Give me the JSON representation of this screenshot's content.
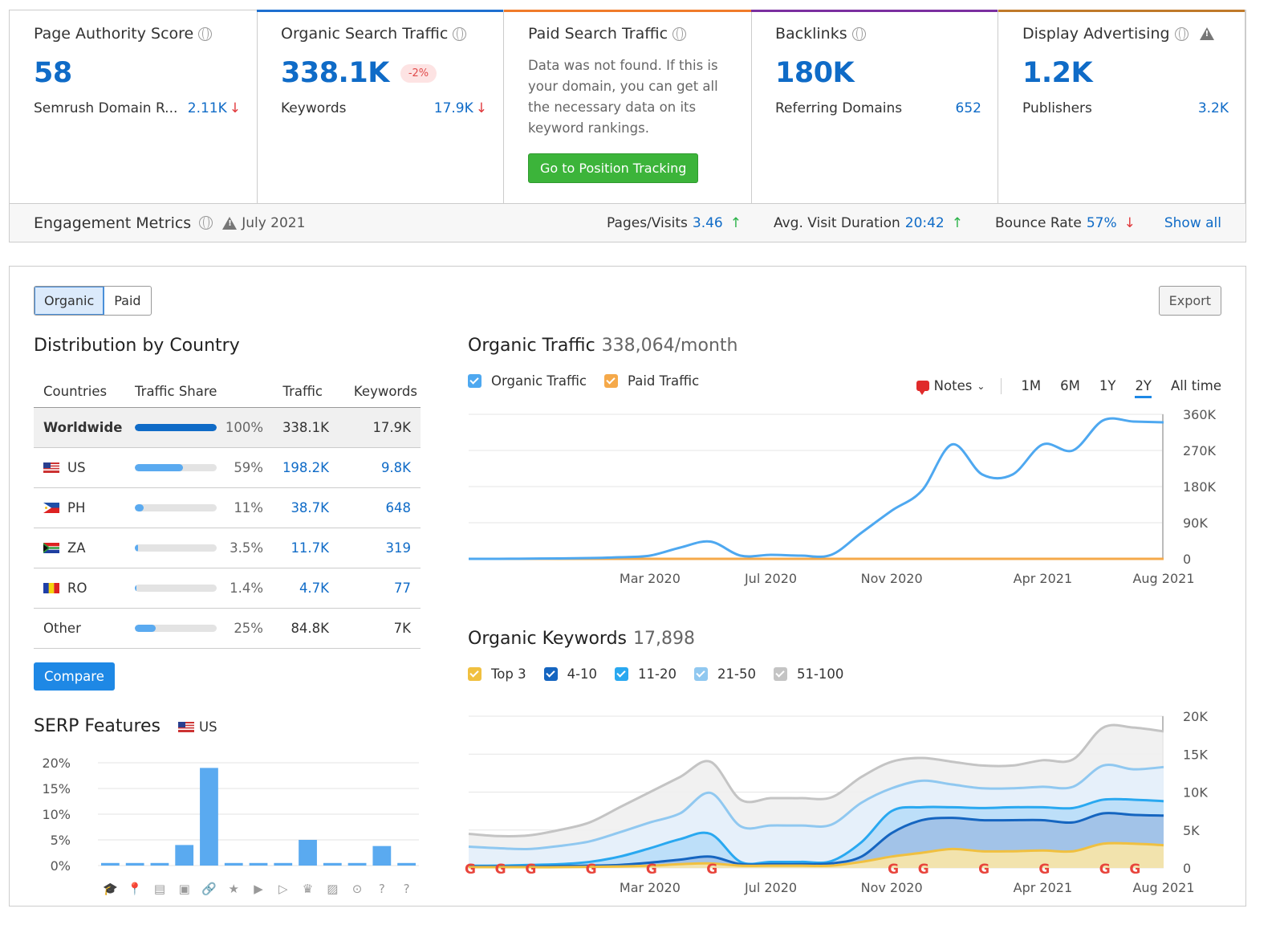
{
  "metrics": [
    {
      "title": "Page Authority Score",
      "value": "58",
      "row_label": "Semrush Domain R...",
      "row_value": "2.11K",
      "row_trend": "down",
      "accent": ""
    },
    {
      "title": "Organic Search Traffic",
      "value": "338.1K",
      "badge": "-2%",
      "row_label": "Keywords",
      "row_value": "17.9K",
      "row_trend": "down",
      "accent": "#1e6fd0"
    },
    {
      "title": "Paid Search Traffic",
      "text": "Data was not found. If this is your domain, you can get all the necessary data on its keyword rankings.",
      "button": "Go to Position Tracking",
      "accent": "#f07b2a"
    },
    {
      "title": "Backlinks",
      "value": "180K",
      "row_label": "Referring Domains",
      "row_value": "652",
      "accent": "#7b2fa0"
    },
    {
      "title": "Display Advertising",
      "value": "1.2K",
      "row_label": "Publishers",
      "row_value": "3.2K",
      "accent": "#c07a2a"
    }
  ],
  "engagement": {
    "title": "Engagement Metrics",
    "date": "July 2021",
    "pages_label": "Pages/Visits",
    "pages_value": "3.46",
    "duration_label": "Avg. Visit Duration",
    "duration_value": "20:42",
    "bounce_label": "Bounce Rate",
    "bounce_value": "57%",
    "show_all": "Show all"
  },
  "toggle": {
    "organic": "Organic",
    "paid": "Paid"
  },
  "export_label": "Export",
  "distribution": {
    "title": "Distribution by Country",
    "headers": {
      "countries": "Countries",
      "share": "Traffic Share",
      "traffic": "Traffic",
      "keywords": "Keywords"
    },
    "rows": [
      {
        "name": "Worldwide",
        "share": "100%",
        "share_value": 1.0,
        "traffic": "338.1K",
        "keywords": "17.9K",
        "flag": ""
      },
      {
        "name": "US",
        "share": "59%",
        "share_value": 0.59,
        "traffic": "198.2K",
        "keywords": "9.8K",
        "flag": "us"
      },
      {
        "name": "PH",
        "share": "11%",
        "share_value": 0.11,
        "traffic": "38.7K",
        "keywords": "648",
        "flag": "ph"
      },
      {
        "name": "ZA",
        "share": "3.5%",
        "share_value": 0.035,
        "traffic": "11.7K",
        "keywords": "319",
        "flag": "za"
      },
      {
        "name": "RO",
        "share": "1.4%",
        "share_value": 0.014,
        "traffic": "4.7K",
        "keywords": "77",
        "flag": "ro"
      },
      {
        "name": "Other",
        "share": "25%",
        "share_value": 0.25,
        "traffic": "84.8K",
        "keywords": "7K",
        "flag": ""
      }
    ],
    "compare_button": "Compare"
  },
  "serp": {
    "title": "SERP Features",
    "country": "US",
    "icons": [
      "graduation-cap-icon",
      "map-pin-icon",
      "news-icon",
      "image-pack-icon",
      "link-icon",
      "star-icon",
      "video-icon",
      "video-carousel-icon",
      "crown-icon",
      "image-icon",
      "play-icon",
      "question-box-icon",
      "question-circle-icon"
    ]
  },
  "organic_traffic": {
    "title": "Organic Traffic",
    "subtitle": "338,064/month",
    "legend": [
      "Organic Traffic",
      "Paid Traffic"
    ],
    "notes_label": "Notes",
    "periods": [
      "1M",
      "6M",
      "1Y",
      "2Y",
      "All time"
    ],
    "active_period": "2Y"
  },
  "organic_keywords": {
    "title": "Organic Keywords",
    "subtitle": "17,898",
    "legend": [
      "Top 3",
      "4-10",
      "11-20",
      "21-50",
      "51-100"
    ]
  },
  "colors": {
    "accent_blue": "#0f6bc7",
    "organic": "#4ea8f0",
    "paid": "#f5a94a",
    "top3": "#f0c040",
    "k4_10": "#1565c0",
    "k11_20": "#29a8f0",
    "k21_50": "#90c8f0",
    "k51_100": "#c4c4c4"
  },
  "chart_data": [
    {
      "type": "bar",
      "title": "SERP Features",
      "ylabel": "",
      "ylim": [
        0,
        20
      ],
      "yticks": [
        "0%",
        "5%",
        "10%",
        "15%",
        "20%"
      ],
      "categories": [
        "Featured snippet",
        "Local pack",
        "Top stories",
        "Image pack",
        "Sitelinks",
        "Reviews",
        "Video",
        "Video carousel",
        "Knowledge panel",
        "Image",
        "Instant answer",
        "People also ask",
        "FAQ"
      ],
      "values": [
        0.5,
        0.5,
        0.5,
        4,
        19,
        0.5,
        0.5,
        0.5,
        5,
        0.5,
        0.5,
        3.8,
        0.5
      ]
    },
    {
      "type": "line",
      "title": "Organic Traffic",
      "x_ticks": [
        "Mar 2020",
        "Jul 2020",
        "Nov 2020",
        "Apr 2021",
        "Aug 2021"
      ],
      "y_ticks": [
        "0",
        "90K",
        "180K",
        "270K",
        "360K"
      ],
      "ylim": [
        0,
        360000
      ],
      "x": [
        "2019-09",
        "2019-10",
        "2019-11",
        "2019-12",
        "2020-01",
        "2020-02",
        "2020-03",
        "2020-04",
        "2020-05",
        "2020-06",
        "2020-07",
        "2020-08",
        "2020-09",
        "2020-10",
        "2020-11",
        "2020-12",
        "2021-01",
        "2021-02",
        "2021-03",
        "2021-04",
        "2021-05",
        "2021-06",
        "2021-07",
        "2021-08"
      ],
      "series": [
        {
          "name": "Organic Traffic",
          "values": [
            0,
            0,
            500,
            1000,
            2000,
            4000,
            8000,
            28000,
            43000,
            8000,
            10000,
            8000,
            10000,
            65000,
            120000,
            170000,
            285000,
            210000,
            210000,
            285000,
            270000,
            345000,
            342000,
            340000
          ]
        },
        {
          "name": "Paid Traffic",
          "values": [
            0,
            0,
            0,
            0,
            0,
            0,
            0,
            0,
            0,
            0,
            0,
            0,
            0,
            0,
            0,
            0,
            0,
            0,
            0,
            0,
            0,
            0,
            0,
            0
          ]
        }
      ]
    },
    {
      "type": "area",
      "title": "Organic Keywords",
      "x_ticks": [
        "Mar 2020",
        "Jul 2020",
        "Nov 2020",
        "Apr 2021",
        "Aug 2021"
      ],
      "y_ticks": [
        "0",
        "5K",
        "10K",
        "15K",
        "20K"
      ],
      "ylim": [
        0,
        20000
      ],
      "x": [
        "2019-09",
        "2019-10",
        "2019-11",
        "2019-12",
        "2020-01",
        "2020-02",
        "2020-03",
        "2020-04",
        "2020-05",
        "2020-06",
        "2020-07",
        "2020-08",
        "2020-09",
        "2020-10",
        "2020-11",
        "2020-12",
        "2021-01",
        "2021-02",
        "2021-03",
        "2021-04",
        "2021-05",
        "2021-06",
        "2021-07",
        "2021-08"
      ],
      "series": [
        {
          "name": "Top 3",
          "values": [
            100,
            100,
            100,
            100,
            150,
            200,
            300,
            500,
            600,
            300,
            300,
            300,
            300,
            800,
            1500,
            2000,
            2500,
            2200,
            2200,
            2300,
            2200,
            3200,
            3200,
            3000
          ]
        },
        {
          "name": "4-10",
          "values": [
            200,
            200,
            200,
            250,
            300,
            400,
            700,
            1100,
            1500,
            500,
            500,
            500,
            600,
            1500,
            4600,
            6300,
            6600,
            6300,
            6300,
            6300,
            6000,
            7200,
            7000,
            6900
          ]
        },
        {
          "name": "11-20",
          "values": [
            300,
            300,
            400,
            500,
            800,
            1500,
            2600,
            3800,
            4500,
            800,
            800,
            800,
            900,
            3400,
            7500,
            8000,
            8000,
            7900,
            8000,
            8000,
            7900,
            9000,
            9000,
            8800
          ]
        },
        {
          "name": "21-50",
          "values": [
            2800,
            2600,
            2500,
            2900,
            3500,
            4700,
            6000,
            7200,
            9900,
            5500,
            5600,
            5600,
            5700,
            8600,
            10500,
            11500,
            11000,
            10500,
            10500,
            10700,
            10700,
            13500,
            13000,
            13300
          ]
        },
        {
          "name": "51-100",
          "values": [
            4500,
            4200,
            4300,
            5000,
            6000,
            8000,
            10000,
            12000,
            14000,
            9000,
            9200,
            9200,
            9300,
            12000,
            14000,
            14500,
            14000,
            13500,
            13500,
            14200,
            14300,
            18500,
            18500,
            18000
          ]
        }
      ]
    }
  ]
}
